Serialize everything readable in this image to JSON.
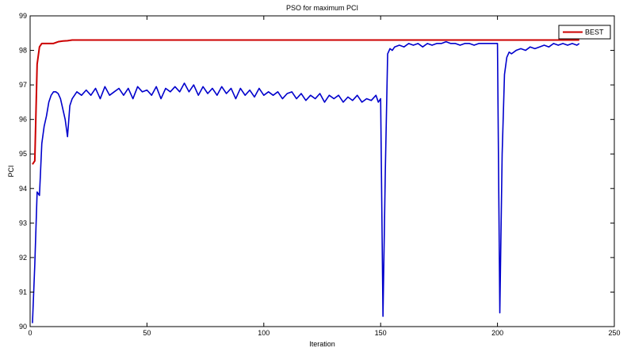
{
  "chart_data": {
    "type": "line",
    "title": "PSO for maximum PCI",
    "xlabel": "Iteration",
    "ylabel": "PCI",
    "xlim": [
      0,
      250
    ],
    "ylim": [
      90,
      99
    ],
    "xticks": [
      0,
      50,
      100,
      150,
      200,
      250
    ],
    "yticks": [
      90,
      91,
      92,
      93,
      94,
      95,
      96,
      97,
      98,
      99
    ],
    "grid": false,
    "legend_position": "top-right",
    "series": [
      {
        "name": "",
        "color": "#0000cc",
        "x": [
          1,
          2,
          3,
          4,
          5,
          6,
          7,
          8,
          9,
          10,
          11,
          12,
          13,
          14,
          15,
          16,
          17,
          18,
          19,
          20,
          22,
          24,
          26,
          28,
          30,
          32,
          34,
          36,
          38,
          40,
          42,
          44,
          46,
          48,
          50,
          52,
          54,
          56,
          58,
          60,
          62,
          64,
          66,
          68,
          70,
          72,
          74,
          76,
          78,
          80,
          82,
          84,
          86,
          88,
          90,
          92,
          94,
          96,
          98,
          100,
          102,
          104,
          106,
          108,
          110,
          112,
          114,
          116,
          118,
          120,
          122,
          124,
          126,
          128,
          130,
          132,
          134,
          136,
          138,
          140,
          142,
          144,
          146,
          148,
          149,
          150,
          151,
          152,
          153,
          154,
          155,
          156,
          158,
          160,
          162,
          164,
          166,
          168,
          170,
          172,
          174,
          176,
          178,
          180,
          182,
          184,
          186,
          188,
          190,
          192,
          194,
          196,
          198,
          199,
          200,
          201,
          202,
          203,
          204,
          205,
          206,
          208,
          210,
          212,
          214,
          216,
          218,
          220,
          222,
          224,
          226,
          228,
          230,
          232,
          234,
          235
        ],
        "values": [
          90.1,
          91.8,
          93.9,
          93.8,
          95.3,
          95.8,
          96.1,
          96.5,
          96.7,
          96.8,
          96.8,
          96.75,
          96.6,
          96.3,
          96.0,
          95.5,
          96.4,
          96.6,
          96.7,
          96.8,
          96.7,
          96.85,
          96.7,
          96.9,
          96.6,
          96.95,
          96.7,
          96.8,
          96.9,
          96.7,
          96.9,
          96.6,
          96.95,
          96.8,
          96.85,
          96.7,
          96.95,
          96.6,
          96.9,
          96.8,
          96.95,
          96.8,
          97.05,
          96.8,
          97.0,
          96.7,
          96.95,
          96.75,
          96.9,
          96.7,
          96.95,
          96.75,
          96.9,
          96.6,
          96.9,
          96.7,
          96.85,
          96.65,
          96.9,
          96.7,
          96.8,
          96.7,
          96.8,
          96.6,
          96.75,
          96.8,
          96.6,
          96.75,
          96.55,
          96.7,
          96.6,
          96.75,
          96.5,
          96.7,
          96.6,
          96.7,
          96.5,
          96.65,
          96.55,
          96.7,
          96.5,
          96.6,
          96.55,
          96.7,
          96.5,
          96.6,
          90.3,
          94.5,
          97.9,
          98.05,
          98.0,
          98.1,
          98.15,
          98.1,
          98.2,
          98.15,
          98.2,
          98.1,
          98.2,
          98.15,
          98.2,
          98.2,
          98.25,
          98.2,
          98.2,
          98.15,
          98.2,
          98.2,
          98.15,
          98.2,
          98.2,
          98.2,
          98.2,
          98.2,
          98.2,
          90.4,
          95.0,
          97.3,
          97.8,
          97.95,
          97.9,
          98.0,
          98.05,
          98.0,
          98.1,
          98.05,
          98.1,
          98.15,
          98.1,
          98.2,
          98.15,
          98.2,
          98.15,
          98.2,
          98.15,
          98.2
        ]
      },
      {
        "name": "BEST",
        "color": "#cc0000",
        "x": [
          1,
          2,
          3,
          4,
          5,
          6,
          7,
          8,
          9,
          10,
          12,
          14,
          16,
          18,
          20,
          30,
          50,
          100,
          150,
          200,
          235
        ],
        "values": [
          94.7,
          94.8,
          97.6,
          98.1,
          98.2,
          98.2,
          98.2,
          98.2,
          98.2,
          98.2,
          98.25,
          98.27,
          98.28,
          98.3,
          98.3,
          98.3,
          98.3,
          98.3,
          98.3,
          98.3,
          98.3
        ]
      }
    ]
  }
}
